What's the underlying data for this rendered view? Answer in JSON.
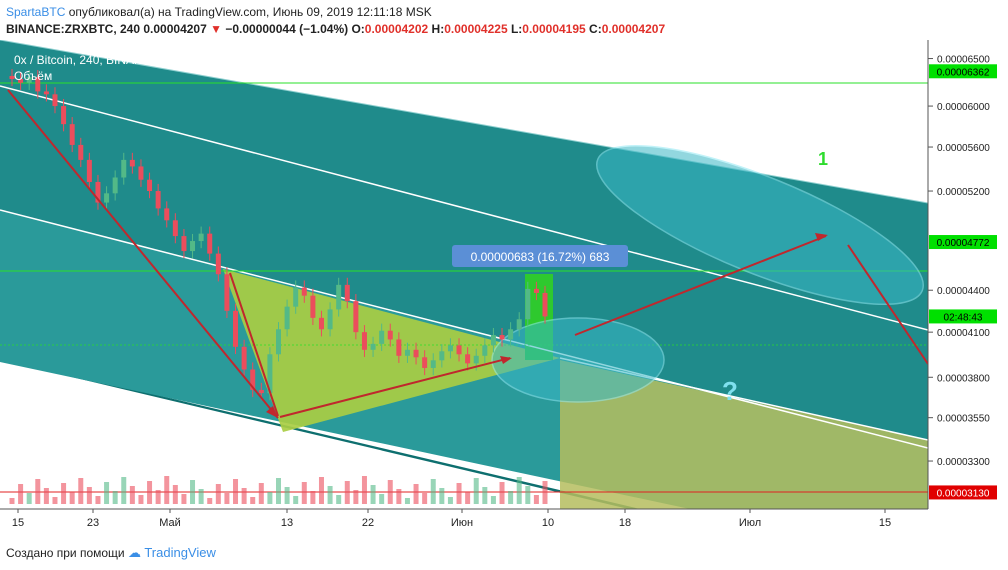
{
  "header": {
    "author": "SpartaBTC",
    "published_text": "опубликовал(а) на TradingView.com, Июнь 09, 2019 12:11:18 MSK",
    "symbol": "BINANCE:ZRXBTC, 240",
    "last": "0.00004207",
    "change": "−0.00000044 (−1.04%)",
    "o_label": "O:",
    "o": "0.00004202",
    "h_label": "H:",
    "h": "0.00004225",
    "l_label": "L:",
    "l": "0.00004195",
    "c_label": "C:",
    "c": "0.00004207"
  },
  "chart_data": {
    "type": "candlestick",
    "title": "0x / Bitcoin, 240, BINANCE",
    "volume_label": "Объём",
    "x_ticks": [
      "15",
      "23",
      "Май",
      "13",
      "22",
      "Июн",
      "10",
      "18",
      "Июл",
      "15"
    ],
    "y_ticks": [
      "0.00006500",
      "0.00006000",
      "0.00005600",
      "0.00005200",
      "0.00004400",
      "0.00004100",
      "0.00003800",
      "0.00003550",
      "0.00003300"
    ],
    "y_scale": "log",
    "price_markers": [
      {
        "label": "0.00006362",
        "color": "#00e000"
      },
      {
        "label": "0.00004772",
        "color": "#00e000"
      },
      {
        "label": "02:48:43",
        "color": "#00e000"
      },
      {
        "label": "0.00003130",
        "color": "#e00000"
      }
    ],
    "close_series": [
      6.28e-05,
      6.24e-05,
      6.3e-05,
      6.15e-05,
      6.12e-05,
      6e-05,
      5.82e-05,
      5.62e-05,
      5.48e-05,
      5.28e-05,
      5.1e-05,
      5.18e-05,
      5.32e-05,
      5.48e-05,
      5.42e-05,
      5.3e-05,
      5.2e-05,
      5.05e-05,
      4.95e-05,
      4.82e-05,
      4.7e-05,
      4.78e-05,
      4.84e-05,
      4.68e-05,
      4.52e-05,
      4.25e-05,
      4e-05,
      3.85e-05,
      3.72e-05,
      3.7e-05,
      3.95e-05,
      4.12e-05,
      4.28e-05,
      4.42e-05,
      4.36e-05,
      4.2e-05,
      4.12e-05,
      4.26e-05,
      4.44e-05,
      4.32e-05,
      4.1e-05,
      3.98e-05,
      4.02e-05,
      4.11e-05,
      4.05e-05,
      3.94e-05,
      3.98e-05,
      3.93e-05,
      3.86e-05,
      3.91e-05,
      3.97e-05,
      4.01e-05,
      3.95e-05,
      3.89e-05,
      3.94e-05,
      4.01e-05,
      4.08e-05,
      4.05e-05,
      4.12e-05,
      4.19e-05,
      4.41e-05,
      4.38e-05,
      4.21e-05
    ],
    "measure_label": "0.00000683 (16.72%) 683",
    "annotations": [
      "1",
      "?"
    ]
  },
  "footer": {
    "created_with": "Создано при помощи",
    "logo_text": "TradingView"
  },
  "colors": {
    "channel_fill": "#1f8f8f",
    "triangle_fill": "#a6c94a",
    "arrow": "#c0272d",
    "ellipse": "#7fe0ee",
    "price_bg": "#ffffff"
  }
}
